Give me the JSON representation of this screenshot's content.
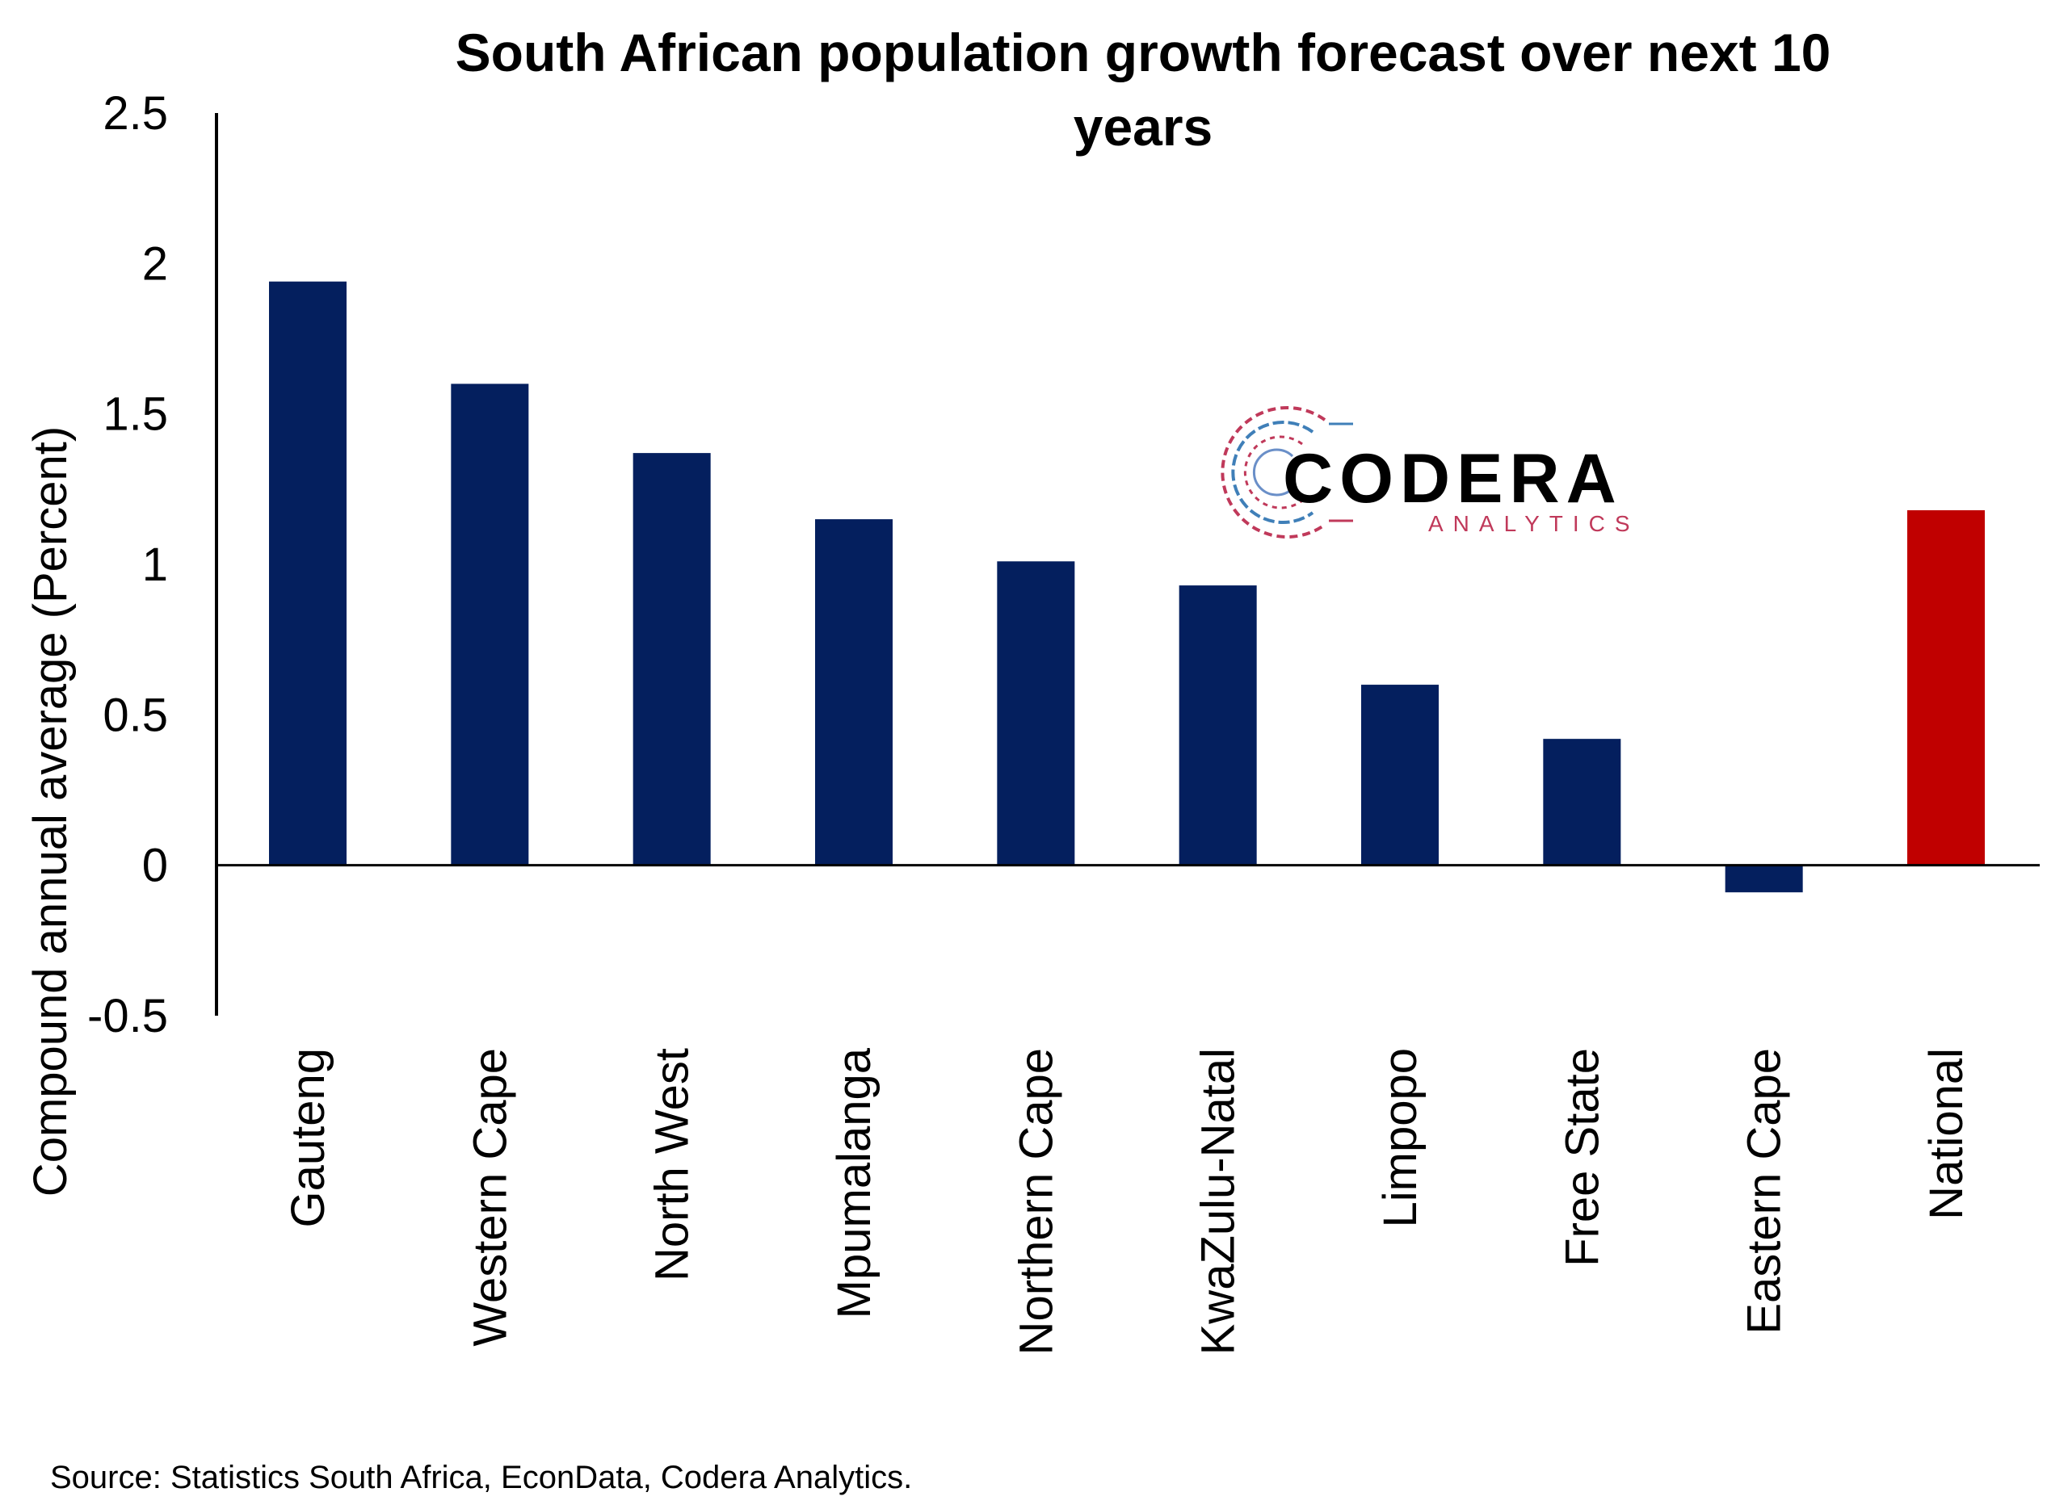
{
  "chart_data": {
    "type": "bar",
    "title_lines": [
      "South African population growth forecast over next 10",
      "years"
    ],
    "ylabel": "Compound annual average (Percent)",
    "xlabel": "",
    "ylim": [
      -0.5,
      2.5
    ],
    "yticks": [
      "2.5",
      "2",
      "1.5",
      "1",
      "0.5",
      "0",
      "-0.5"
    ],
    "ytick_values": [
      2.5,
      2,
      1.5,
      1,
      0.5,
      0,
      -0.5
    ],
    "categories": [
      "Gauteng",
      "Western Cape",
      "North West",
      "Mpumalanga",
      "Northern Cape",
      "KwaZulu-Natal",
      "Limpopo",
      "Free State",
      "Eastern Cape",
      "National"
    ],
    "values": [
      1.94,
      1.6,
      1.37,
      1.15,
      1.01,
      0.93,
      0.6,
      0.42,
      -0.09,
      1.18
    ],
    "bar_colors": [
      "#041f5e",
      "#041f5e",
      "#041f5e",
      "#041f5e",
      "#041f5e",
      "#041f5e",
      "#041f5e",
      "#041f5e",
      "#041f5e",
      "#c00000"
    ],
    "grid": false,
    "legend": "none"
  },
  "logo": {
    "name": "CODERA",
    "sub": "ANALYTICS",
    "sub_color": "#c0395a"
  },
  "source": "Source: Statistics South Africa, EconData, Codera Analytics."
}
